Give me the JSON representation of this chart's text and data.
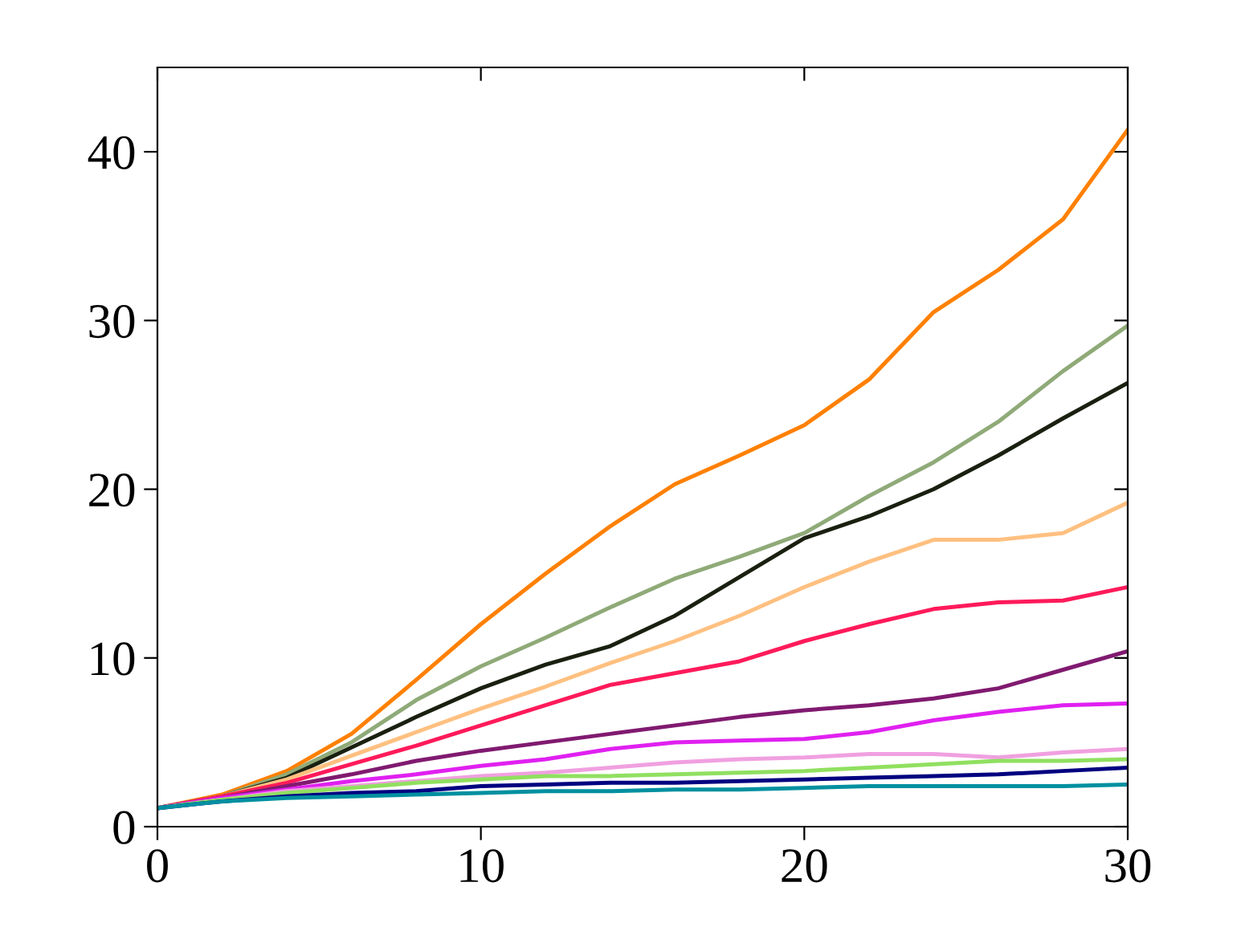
{
  "chart_data": {
    "type": "line",
    "x": [
      0,
      2,
      4,
      6,
      8,
      10,
      12,
      14,
      16,
      18,
      20,
      22,
      24,
      26,
      28,
      30
    ],
    "xlim": [
      0,
      30
    ],
    "xticks": [
      0,
      10,
      20,
      30
    ],
    "ylim": [
      0,
      45
    ],
    "yticks": [
      0,
      10,
      20,
      30,
      40
    ],
    "grid": false,
    "marker": "none",
    "line_style": "solid",
    "series": [
      {
        "color": "#ff8000",
        "values": [
          1.1,
          1.9,
          3.3,
          5.5,
          8.7,
          12,
          15,
          17.8,
          20.3,
          22,
          23.8,
          26.5,
          30.5,
          33,
          36,
          41.3
        ]
      },
      {
        "color": "#8faa78",
        "values": [
          1.1,
          1.8,
          3.1,
          5,
          7.5,
          9.5,
          11.2,
          13,
          14.7,
          16,
          17.4,
          19.6,
          21.6,
          24,
          27,
          29.7
        ]
      },
      {
        "color": "#1a2010",
        "values": [
          1.1,
          1.8,
          2.9,
          4.7,
          6.5,
          8.2,
          9.6,
          10.7,
          12.5,
          14.8,
          17.1,
          18.4,
          20,
          22,
          24.2,
          26.3
        ]
      },
      {
        "color": "#ffc080",
        "values": [
          1.1,
          1.8,
          2.8,
          4.2,
          5.6,
          7,
          8.3,
          9.7,
          11,
          12.5,
          14.2,
          15.7,
          17,
          17,
          17.4,
          19.2
        ]
      },
      {
        "color": "#ff1a5a",
        "values": [
          1.1,
          1.8,
          2.6,
          3.7,
          4.8,
          6,
          7.2,
          8.4,
          9.1,
          9.8,
          11,
          12,
          12.9,
          13.3,
          13.4,
          14.2
        ]
      },
      {
        "color": "#801a70",
        "values": [
          1.1,
          1.7,
          2.4,
          3.1,
          3.9,
          4.5,
          5,
          5.5,
          6,
          6.5,
          6.9,
          7.2,
          7.6,
          8.2,
          9.3,
          10.4
        ]
      },
      {
        "color": "#e020f0",
        "values": [
          1.1,
          1.7,
          2.2,
          2.7,
          3.1,
          3.6,
          4,
          4.6,
          5,
          5.1,
          5.2,
          5.6,
          6.3,
          6.8,
          7.2,
          7.3
        ]
      },
      {
        "color": "#f0a0e0",
        "values": [
          1.1,
          1.6,
          2.1,
          2.4,
          2.7,
          3,
          3.2,
          3.5,
          3.8,
          4,
          4.1,
          4.3,
          4.3,
          4.1,
          4.4,
          4.6
        ]
      },
      {
        "color": "#90e060",
        "values": [
          1.1,
          1.6,
          2,
          2.3,
          2.6,
          2.8,
          3,
          3,
          3.1,
          3.2,
          3.3,
          3.5,
          3.7,
          3.9,
          3.9,
          4.0
        ]
      },
      {
        "color": "#000080",
        "values": [
          1.1,
          1.5,
          1.8,
          2,
          2.1,
          2.4,
          2.5,
          2.6,
          2.6,
          2.7,
          2.8,
          2.9,
          3,
          3.1,
          3.3,
          3.5
        ]
      },
      {
        "color": "#0090a0",
        "values": [
          1.1,
          1.5,
          1.7,
          1.8,
          1.9,
          2,
          2.1,
          2.1,
          2.2,
          2.2,
          2.3,
          2.4,
          2.4,
          2.4,
          2.4,
          2.5
        ]
      }
    ]
  }
}
